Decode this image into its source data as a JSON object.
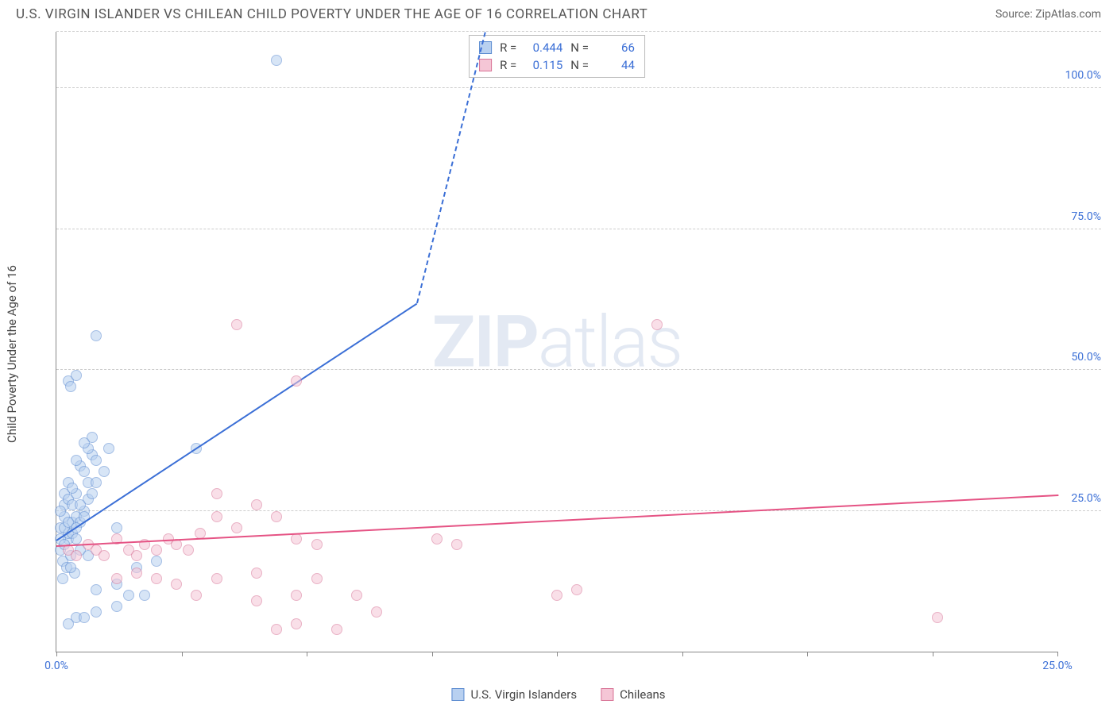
{
  "title": "U.S. VIRGIN ISLANDER VS CHILEAN CHILD POVERTY UNDER THE AGE OF 16 CORRELATION CHART",
  "source_prefix": "Source: ",
  "source": "ZipAtlas.com",
  "y_axis_label": "Child Poverty Under the Age of 16",
  "watermark_a": "ZIP",
  "watermark_b": "atlas",
  "chart": {
    "type": "scatter",
    "xlim": [
      0,
      25
    ],
    "ylim": [
      0,
      110
    ],
    "y_ticks": [
      25,
      50,
      75,
      100
    ],
    "y_tick_labels": [
      "25.0%",
      "50.0%",
      "75.0%",
      "100.0%"
    ],
    "x_ticks": [
      0,
      3.125,
      6.25,
      9.375,
      12.5,
      15.625,
      18.75,
      21.875,
      25
    ],
    "x_tick_major_labels": {
      "0": "0.0%",
      "25": "25.0%"
    },
    "background_color": "#ffffff",
    "grid_color": "#cccccc",
    "axis_color": "#888888",
    "tick_label_color": "#3b6fd6",
    "marker_size": 14
  },
  "series": [
    {
      "key": "usvi",
      "label": "U.S. Virgin Islanders",
      "fill": "#b8d0f0",
      "stroke": "#5a8ad0",
      "line_color": "#3b6fd6",
      "R": "0.444",
      "N": "66",
      "trend": {
        "x1": 0,
        "y1": 20,
        "x2": 9,
        "y2": 62
      },
      "trend_dash": {
        "x1": 9,
        "y1": 62,
        "x2": 10.7,
        "y2": 110
      },
      "points": [
        [
          0.1,
          22
        ],
        [
          0.2,
          24
        ],
        [
          0.1,
          18
        ],
        [
          0.3,
          20
        ],
        [
          0.2,
          26
        ],
        [
          0.4,
          23
        ],
        [
          0.1,
          25
        ],
        [
          0.3,
          21
        ],
        [
          0.2,
          28
        ],
        [
          0.5,
          24
        ],
        [
          0.1,
          20
        ],
        [
          0.3,
          27
        ],
        [
          0.2,
          22
        ],
        [
          0.4,
          26
        ],
        [
          0.6,
          23
        ],
        [
          0.3,
          30
        ],
        [
          0.5,
          28
        ],
        [
          0.2,
          19
        ],
        [
          0.4,
          21
        ],
        [
          0.7,
          25
        ],
        [
          0.3,
          23
        ],
        [
          0.8,
          27
        ],
        [
          0.5,
          22
        ],
        [
          0.6,
          26
        ],
        [
          0.4,
          29
        ],
        [
          0.7,
          24
        ],
        [
          0.9,
          28
        ],
        [
          0.5,
          20
        ],
        [
          0.8,
          30
        ],
        [
          0.6,
          33
        ],
        [
          0.9,
          35
        ],
        [
          0.7,
          32
        ],
        [
          1.0,
          30
        ],
        [
          0.5,
          34
        ],
        [
          0.8,
          36
        ],
        [
          1.2,
          32
        ],
        [
          0.9,
          38
        ],
        [
          1.0,
          34
        ],
        [
          1.3,
          36
        ],
        [
          0.7,
          37
        ],
        [
          0.15,
          16
        ],
        [
          0.35,
          17
        ],
        [
          0.25,
          15
        ],
        [
          0.45,
          14
        ],
        [
          0.15,
          13
        ],
        [
          0.35,
          15
        ],
        [
          0.3,
          48
        ],
        [
          0.5,
          49
        ],
        [
          0.35,
          47
        ],
        [
          1.0,
          56
        ],
        [
          3.5,
          36
        ],
        [
          5.5,
          105
        ],
        [
          0.6,
          18
        ],
        [
          0.8,
          17
        ],
        [
          1.0,
          11
        ],
        [
          1.5,
          12
        ],
        [
          0.5,
          6
        ],
        [
          1.0,
          7
        ],
        [
          1.5,
          8
        ],
        [
          1.8,
          10
        ],
        [
          2.2,
          10
        ],
        [
          0.3,
          5
        ],
        [
          0.7,
          6
        ],
        [
          2.0,
          15
        ],
        [
          2.5,
          16
        ],
        [
          1.5,
          22
        ]
      ]
    },
    {
      "key": "chile",
      "label": "Chileans",
      "fill": "#f5c6d6",
      "stroke": "#d87396",
      "line_color": "#e55384",
      "R": "0.115",
      "N": "44",
      "trend": {
        "x1": 0,
        "y1": 19,
        "x2": 25,
        "y2": 28
      },
      "points": [
        [
          0.3,
          18
        ],
        [
          0.5,
          17
        ],
        [
          0.8,
          19
        ],
        [
          1.0,
          18
        ],
        [
          1.2,
          17
        ],
        [
          1.5,
          20
        ],
        [
          1.8,
          18
        ],
        [
          2.0,
          17
        ],
        [
          2.2,
          19
        ],
        [
          2.5,
          18
        ],
        [
          2.8,
          20
        ],
        [
          3.0,
          19
        ],
        [
          3.3,
          18
        ],
        [
          3.6,
          21
        ],
        [
          4.0,
          24
        ],
        [
          4.0,
          28
        ],
        [
          4.5,
          22
        ],
        [
          5.0,
          26
        ],
        [
          5.5,
          24
        ],
        [
          6.0,
          20
        ],
        [
          6.5,
          19
        ],
        [
          1.5,
          13
        ],
        [
          2.0,
          14
        ],
        [
          2.5,
          13
        ],
        [
          3.0,
          12
        ],
        [
          3.5,
          10
        ],
        [
          4.0,
          13
        ],
        [
          5.0,
          9
        ],
        [
          6.0,
          10
        ],
        [
          6.5,
          13
        ],
        [
          7.5,
          10
        ],
        [
          9.5,
          20
        ],
        [
          10.0,
          19
        ],
        [
          5.0,
          14
        ],
        [
          5.5,
          4
        ],
        [
          6.0,
          5
        ],
        [
          7.0,
          4
        ],
        [
          8.0,
          7
        ],
        [
          13.0,
          11
        ],
        [
          15.0,
          58
        ],
        [
          22.0,
          6
        ],
        [
          4.5,
          58
        ],
        [
          6.0,
          48
        ],
        [
          12.5,
          10
        ]
      ]
    }
  ],
  "stats_labels": {
    "R": "R =",
    "N": "N ="
  }
}
